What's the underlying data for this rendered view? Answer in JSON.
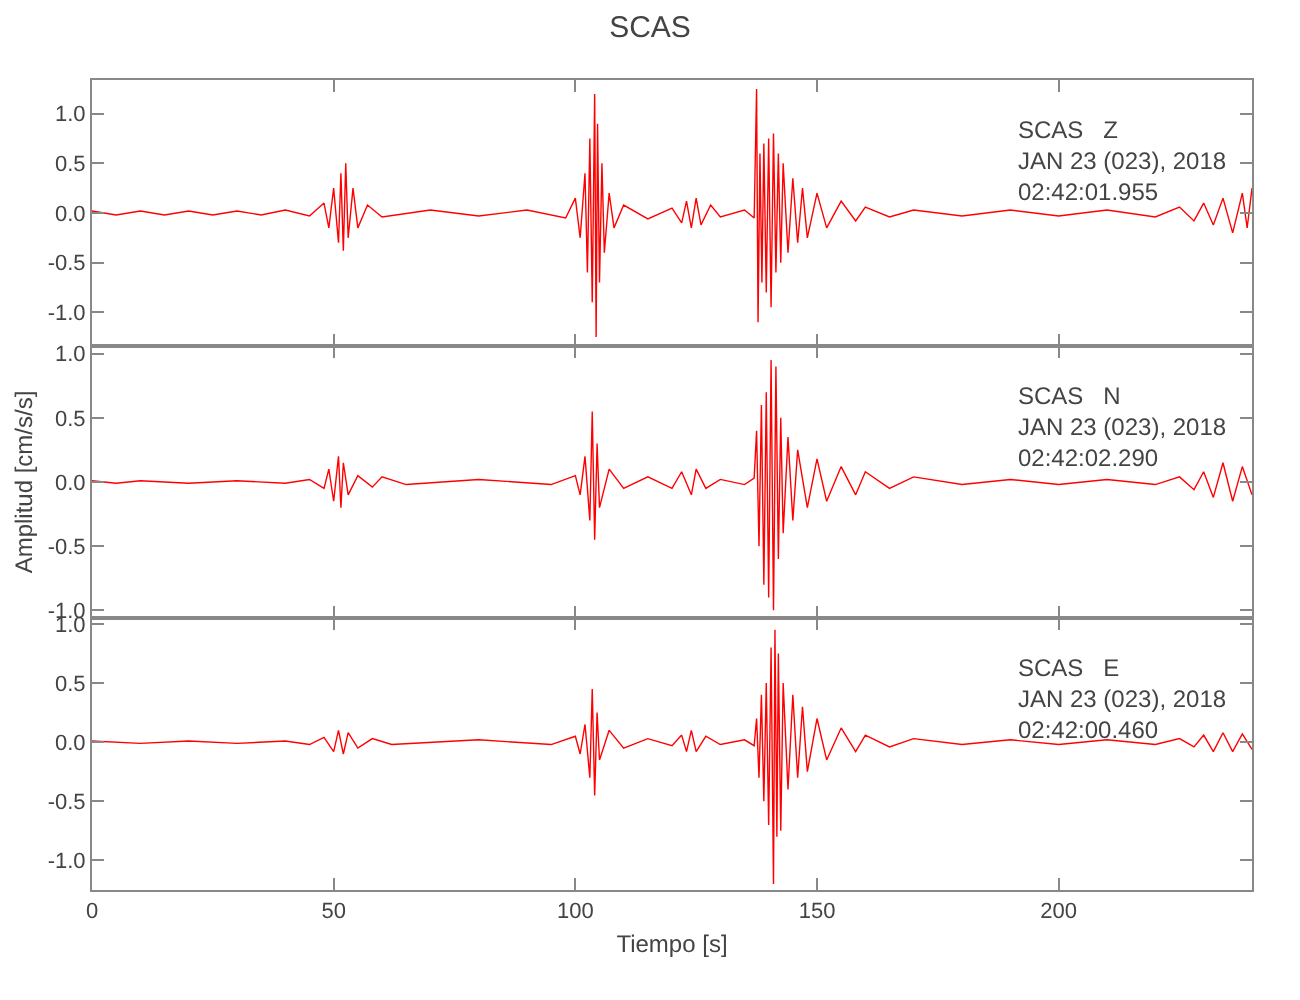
{
  "chart_data": [
    {
      "type": "line",
      "title": "SCAS",
      "annotations": [
        "SCAS   Z\nJAN 23 (023), 2018\n02:42:01.955"
      ],
      "tick_labels": "y",
      "xlim": [
        0,
        240
      ],
      "xticks": [
        0,
        50,
        100,
        150,
        200
      ],
      "ylim": [
        -1.34,
        1.34
      ],
      "yticks": [
        {
          "value": -1,
          "label": "-1.0"
        },
        {
          "value": -0.5,
          "label": "-0.5"
        },
        {
          "value": 0,
          "label": "0.0"
        },
        {
          "value": 0.5,
          "label": "0.5"
        },
        {
          "value": 1,
          "label": "1.0"
        }
      ],
      "series": [
        {
          "color": "#ff0000",
          "x": [
            0,
            5,
            10,
            15,
            20,
            25,
            30,
            35,
            40,
            45,
            48,
            49,
            50,
            51,
            51.5,
            52,
            52.5,
            53,
            54,
            55,
            57,
            60,
            70,
            80,
            90,
            98,
            100,
            101,
            102,
            102.5,
            103,
            103.5,
            104,
            104.3,
            104.6,
            105,
            105.5,
            106,
            107,
            108,
            110,
            115,
            120,
            122,
            123,
            124,
            125,
            126,
            128,
            130,
            135,
            137,
            137.5,
            137.8,
            138.2,
            138.6,
            139,
            139.5,
            140,
            140.5,
            141,
            141.5,
            142,
            142.5,
            143,
            144,
            145,
            146,
            147,
            148,
            150,
            152,
            155,
            158,
            160,
            165,
            170,
            180,
            190,
            200,
            210,
            220,
            225,
            228,
            230,
            232,
            234,
            236,
            238,
            239,
            240
          ],
          "values": [
            0.02,
            -0.02,
            0.02,
            -0.02,
            0.02,
            -0.02,
            0.02,
            -0.02,
            0.03,
            -0.03,
            0.1,
            -0.15,
            0.25,
            -0.3,
            0.4,
            -0.38,
            0.5,
            -0.25,
            0.25,
            -0.15,
            0.08,
            -0.04,
            0.03,
            -0.03,
            0.03,
            -0.05,
            0.15,
            -0.25,
            0.4,
            -0.6,
            0.75,
            -0.9,
            1.2,
            -1.25,
            0.9,
            -0.7,
            0.5,
            -0.4,
            0.2,
            -0.15,
            0.08,
            -0.06,
            0.05,
            -0.1,
            0.12,
            -0.15,
            0.15,
            -0.12,
            0.08,
            -0.04,
            0.03,
            -0.05,
            1.25,
            -1.1,
            0.6,
            -0.7,
            0.7,
            -0.8,
            0.75,
            -0.95,
            0.8,
            -0.6,
            0.6,
            -0.5,
            0.5,
            -0.4,
            0.35,
            -0.3,
            0.25,
            -0.25,
            0.2,
            -0.15,
            0.12,
            -0.08,
            0.06,
            -0.04,
            0.03,
            -0.03,
            0.03,
            -0.03,
            0.03,
            -0.04,
            0.06,
            -0.08,
            0.1,
            -0.12,
            0.15,
            -0.2,
            0.2,
            -0.15,
            0.25
          ]
        }
      ]
    },
    {
      "type": "line",
      "ylabel": "Amplitud [cm/s/s]",
      "annotations": [
        "SCAS   N\nJAN 23 (023), 2018\n02:42:02.290"
      ],
      "tick_labels": "y",
      "xlim": [
        0,
        240
      ],
      "xticks": [
        0,
        50,
        100,
        150,
        200
      ],
      "ylim": [
        -1.06,
        1.06
      ],
      "yticks": [
        {
          "value": -1,
          "label": "-1.0"
        },
        {
          "value": -0.5,
          "label": "-0.5"
        },
        {
          "value": 0,
          "label": "0.0"
        },
        {
          "value": 0.5,
          "label": "0.5"
        },
        {
          "value": 1,
          "label": "1.0"
        }
      ],
      "series": [
        {
          "color": "#ff0000",
          "x": [
            0,
            5,
            10,
            20,
            30,
            40,
            45,
            48,
            49,
            50,
            51,
            51.5,
            52,
            53,
            55,
            58,
            60,
            65,
            80,
            95,
            100,
            101,
            102,
            103,
            103.5,
            104,
            104.5,
            105,
            107,
            110,
            115,
            120,
            122,
            124,
            125,
            127,
            130,
            135,
            137,
            137.5,
            138,
            138.5,
            139,
            139.5,
            140,
            140.5,
            141,
            141.5,
            142,
            142.5,
            143,
            144,
            145,
            146,
            148,
            150,
            152,
            155,
            158,
            160,
            165,
            170,
            180,
            190,
            200,
            210,
            220,
            225,
            228,
            230,
            232,
            234,
            236,
            238,
            240
          ],
          "values": [
            0.01,
            -0.01,
            0.01,
            -0.01,
            0.01,
            -0.01,
            0.02,
            -0.05,
            0.1,
            -0.15,
            0.2,
            -0.2,
            0.15,
            -0.1,
            0.05,
            -0.04,
            0.04,
            -0.02,
            0.02,
            -0.02,
            0.05,
            -0.1,
            0.2,
            -0.3,
            0.55,
            -0.45,
            0.3,
            -0.2,
            0.1,
            -0.05,
            0.04,
            -0.05,
            0.08,
            -0.1,
            0.1,
            -0.05,
            0.02,
            -0.02,
            0.03,
            0.4,
            -0.5,
            0.6,
            -0.8,
            0.7,
            -0.9,
            0.95,
            -1.0,
            0.9,
            -0.6,
            0.5,
            -0.4,
            0.35,
            -0.3,
            0.25,
            -0.2,
            0.18,
            -0.15,
            0.12,
            -0.1,
            0.08,
            -0.05,
            0.04,
            -0.02,
            0.02,
            -0.02,
            0.02,
            -0.02,
            0.04,
            -0.06,
            0.08,
            -0.12,
            0.15,
            -0.15,
            0.12,
            -0.1
          ]
        }
      ]
    },
    {
      "type": "line",
      "xlabel": "Tiempo [s]",
      "annotations": [
        "SCAS   E\nJAN 23 (023), 2018\n02:42:00.460"
      ],
      "xlim": [
        0,
        240
      ],
      "xticks": [
        0,
        50,
        100,
        150,
        200
      ],
      "ylim": [
        -1.25,
        1.05
      ],
      "yticks": [
        {
          "value": -1,
          "label": "-1.0"
        },
        {
          "value": -0.5,
          "label": "-0.5"
        },
        {
          "value": 0,
          "label": "0.0"
        },
        {
          "value": 0.5,
          "label": "0.5"
        },
        {
          "value": 1,
          "label": "1.0"
        }
      ],
      "series": [
        {
          "color": "#ff0000",
          "x": [
            0,
            10,
            20,
            30,
            40,
            45,
            48,
            50,
            51,
            52,
            53,
            55,
            58,
            62,
            80,
            95,
            100,
            101,
            102,
            103,
            103.5,
            104,
            104.5,
            105,
            107,
            110,
            115,
            120,
            122,
            123,
            124,
            125,
            127,
            130,
            135,
            137,
            137.5,
            138,
            138.5,
            139,
            139.5,
            140,
            140.5,
            141,
            141.3,
            141.7,
            142,
            142.5,
            143,
            144,
            145,
            146,
            147,
            148,
            150,
            152,
            155,
            158,
            160,
            165,
            170,
            180,
            190,
            200,
            210,
            220,
            225,
            228,
            230,
            232,
            234,
            236,
            238,
            240
          ],
          "values": [
            0.01,
            -0.01,
            0.01,
            -0.01,
            0.01,
            -0.02,
            0.04,
            -0.08,
            0.1,
            -0.1,
            0.08,
            -0.05,
            0.03,
            -0.02,
            0.02,
            -0.02,
            0.05,
            -0.1,
            0.15,
            -0.3,
            0.45,
            -0.45,
            0.25,
            -0.15,
            0.1,
            -0.05,
            0.03,
            -0.03,
            0.06,
            -0.08,
            0.1,
            -0.08,
            0.05,
            -0.02,
            0.02,
            -0.03,
            0.2,
            -0.3,
            0.4,
            -0.5,
            0.5,
            -0.7,
            0.8,
            -1.2,
            0.95,
            -0.8,
            0.75,
            -0.75,
            0.5,
            -0.4,
            0.4,
            -0.3,
            0.3,
            -0.25,
            0.2,
            -0.15,
            0.12,
            -0.08,
            0.06,
            -0.04,
            0.03,
            -0.02,
            0.02,
            -0.02,
            0.02,
            -0.02,
            0.03,
            -0.04,
            0.06,
            -0.08,
            0.08,
            -0.08,
            0.07,
            -0.06
          ]
        }
      ]
    }
  ]
}
